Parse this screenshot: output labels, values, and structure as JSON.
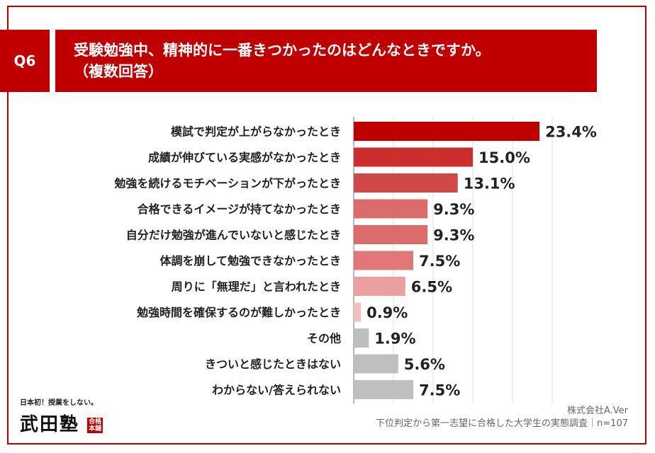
{
  "header": {
    "question_id": "Q6",
    "title_line1": "受験勉強中、精神的に一番きつかったのはどんなときですか。",
    "title_line2": "（複数回答）"
  },
  "chart_data": {
    "type": "bar",
    "orientation": "horizontal",
    "categories": [
      "模試で判定が上がらなかったとき",
      "成績が伸びている実感がなかったとき",
      "勉強を続けるモチベーションが下がったとき",
      "合格できるイメージが持てなかったとき",
      "自分だけ勉強が進んでいないと感じたとき",
      "体調を崩して勉強できなかったとき",
      "周りに「無理だ」と言われたとき",
      "勉強時間を確保するのが難しかったとき",
      "その他",
      "きついと感じたときはない",
      "わからない/答えられない"
    ],
    "values": [
      23.4,
      15.0,
      13.1,
      9.3,
      9.3,
      7.5,
      6.5,
      0.9,
      1.9,
      5.6,
      7.5
    ],
    "value_labels": [
      "23.4%",
      "15.0%",
      "13.1%",
      "9.3%",
      "9.3%",
      "7.5%",
      "6.5%",
      "0.9%",
      "1.9%",
      "5.6%",
      "7.5%"
    ],
    "colors": [
      "#c00000",
      "#cc2e2e",
      "#d04848",
      "#dc6c6c",
      "#dc6c6c",
      "#e07878",
      "#eaa0a0",
      "#f2c0c0",
      "#bfbfbf",
      "#bfbfbf",
      "#bfbfbf"
    ],
    "xlim": [
      0,
      25
    ],
    "grid": true,
    "title": "",
    "xlabel": "",
    "ylabel": ""
  },
  "footer": {
    "company": "株式会社A.Ver",
    "survey": "下位判定から第一志望に合格した大学生の実態調査｜n=107"
  },
  "logo": {
    "tagline": "日本初！授業をしない。",
    "name": "武田塾",
    "badge_top": "合格",
    "badge_bottom": "本舗"
  }
}
